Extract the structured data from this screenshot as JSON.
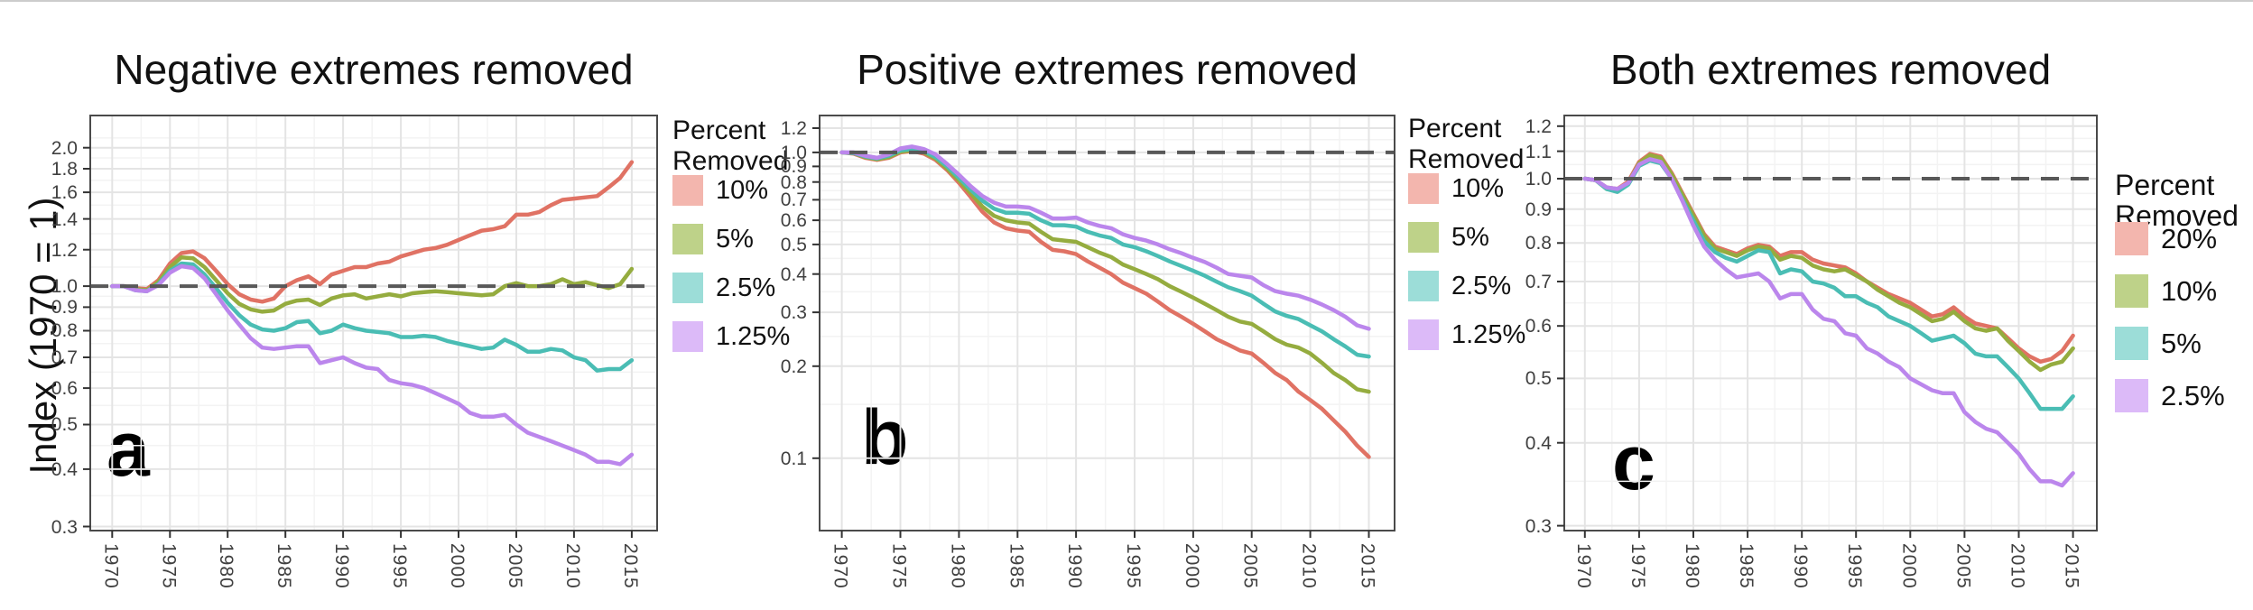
{
  "figure": {
    "y_axis_label": "Index (1970 = 1)",
    "reference_line_color": "#585858",
    "background_color": "#ffffff"
  },
  "chart_data": [
    {
      "type": "line",
      "title": "Negative extremes removed",
      "panel_label": "a",
      "ylabel": "Index (1970 = 1)",
      "y_scale": "log10",
      "reference_line_y": 1.0,
      "legend_title_lines": [
        "Percent",
        "Removed"
      ],
      "legend_position": "right",
      "grid": true,
      "xticks": [
        1970,
        1975,
        1980,
        1985,
        1990,
        1995,
        2000,
        2005,
        2010,
        2015
      ],
      "yticks": [
        0.3,
        0.4,
        0.5,
        0.6,
        0.7,
        0.8,
        0.9,
        1.0,
        1.2,
        1.4,
        1.6,
        1.8,
        2.0
      ],
      "xlim": [
        1968.1,
        2017.2
      ],
      "ylim": [
        0.294,
        2.35
      ],
      "x": [
        1970,
        1971,
        1972,
        1973,
        1974,
        1975,
        1976,
        1977,
        1978,
        1979,
        1980,
        1981,
        1982,
        1983,
        1984,
        1985,
        1986,
        1987,
        1988,
        1989,
        1990,
        1991,
        1992,
        1993,
        1994,
        1995,
        1996,
        1997,
        1998,
        1999,
        2000,
        2001,
        2002,
        2003,
        2004,
        2005,
        2006,
        2007,
        2008,
        2009,
        2010,
        2011,
        2012,
        2013,
        2014,
        2015
      ],
      "series": [
        {
          "name": "10%",
          "color": "#E07264",
          "swatch_color": "#F3B6AE",
          "values": [
            1.0,
            1.0,
            0.99,
            0.985,
            1.03,
            1.12,
            1.18,
            1.19,
            1.15,
            1.08,
            1.01,
            0.96,
            0.935,
            0.925,
            0.94,
            1.0,
            1.03,
            1.05,
            1.01,
            1.06,
            1.08,
            1.1,
            1.1,
            1.12,
            1.13,
            1.16,
            1.18,
            1.2,
            1.21,
            1.23,
            1.26,
            1.29,
            1.32,
            1.33,
            1.35,
            1.43,
            1.43,
            1.45,
            1.5,
            1.54,
            1.55,
            1.56,
            1.57,
            1.64,
            1.72,
            1.86
          ]
        },
        {
          "name": "5%",
          "color": "#95AC3F",
          "swatch_color": "#BED289",
          "values": [
            1.0,
            1.0,
            0.985,
            0.98,
            1.02,
            1.1,
            1.155,
            1.15,
            1.1,
            1.03,
            0.965,
            0.915,
            0.89,
            0.88,
            0.885,
            0.915,
            0.93,
            0.935,
            0.91,
            0.94,
            0.955,
            0.96,
            0.94,
            0.95,
            0.96,
            0.95,
            0.965,
            0.97,
            0.975,
            0.97,
            0.965,
            0.96,
            0.955,
            0.96,
            1.0,
            1.015,
            1.0,
            1.0,
            1.01,
            1.035,
            1.01,
            1.02,
            1.005,
            0.99,
            1.01,
            1.09
          ]
        },
        {
          "name": "2.5%",
          "color": "#4ABDB4",
          "swatch_color": "#9CDDD8",
          "values": [
            1.0,
            1.0,
            0.98,
            0.975,
            1.01,
            1.08,
            1.12,
            1.115,
            1.06,
            0.99,
            0.92,
            0.865,
            0.825,
            0.805,
            0.8,
            0.81,
            0.835,
            0.84,
            0.79,
            0.8,
            0.825,
            0.81,
            0.8,
            0.795,
            0.79,
            0.775,
            0.775,
            0.78,
            0.775,
            0.76,
            0.75,
            0.74,
            0.73,
            0.735,
            0.765,
            0.745,
            0.72,
            0.72,
            0.73,
            0.725,
            0.7,
            0.69,
            0.655,
            0.66,
            0.66,
            0.69
          ]
        },
        {
          "name": "1.25%",
          "color": "#BB86EC",
          "swatch_color": "#DCBAF8",
          "values": [
            1.0,
            1.0,
            0.98,
            0.975,
            1.005,
            1.07,
            1.105,
            1.095,
            1.04,
            0.96,
            0.885,
            0.825,
            0.77,
            0.735,
            0.73,
            0.735,
            0.74,
            0.74,
            0.68,
            0.69,
            0.7,
            0.68,
            0.665,
            0.66,
            0.625,
            0.615,
            0.61,
            0.6,
            0.585,
            0.57,
            0.555,
            0.53,
            0.52,
            0.52,
            0.525,
            0.5,
            0.48,
            0.47,
            0.46,
            0.45,
            0.44,
            0.43,
            0.415,
            0.415,
            0.41,
            0.43
          ]
        }
      ]
    },
    {
      "type": "line",
      "title": "Positive extremes removed",
      "panel_label": "b",
      "ylabel": "Index (1970 = 1)",
      "y_scale": "log10",
      "reference_line_y": 1.0,
      "legend_title_lines": [
        "Percent",
        "Removed"
      ],
      "legend_position": "right",
      "grid": true,
      "xticks": [
        1970,
        1975,
        1980,
        1985,
        1990,
        1995,
        2000,
        2005,
        2010,
        2015
      ],
      "yticks": [
        0.1,
        0.2,
        0.3,
        0.4,
        0.5,
        0.6,
        0.7,
        0.8,
        0.9,
        1.0,
        1.2
      ],
      "xlim": [
        1968.1,
        2017.2
      ],
      "ylim": [
        0.058,
        1.32
      ],
      "x": [
        1970,
        1971,
        1972,
        1973,
        1974,
        1975,
        1976,
        1977,
        1978,
        1979,
        1980,
        1981,
        1982,
        1983,
        1984,
        1985,
        1986,
        1987,
        1988,
        1989,
        1990,
        1991,
        1992,
        1993,
        1994,
        1995,
        1996,
        1997,
        1998,
        1999,
        2000,
        2001,
        2002,
        2003,
        2004,
        2005,
        2006,
        2007,
        2008,
        2009,
        2010,
        2011,
        2012,
        2013,
        2014,
        2015
      ],
      "series": [
        {
          "name": "10%",
          "color": "#E07264",
          "swatch_color": "#F3B6AE",
          "values": [
            1.0,
            0.99,
            0.96,
            0.945,
            0.96,
            1.0,
            1.01,
            0.99,
            0.945,
            0.875,
            0.795,
            0.715,
            0.64,
            0.59,
            0.565,
            0.555,
            0.55,
            0.51,
            0.48,
            0.475,
            0.465,
            0.44,
            0.42,
            0.4,
            0.375,
            0.36,
            0.345,
            0.325,
            0.305,
            0.29,
            0.275,
            0.26,
            0.245,
            0.235,
            0.225,
            0.22,
            0.205,
            0.19,
            0.18,
            0.165,
            0.155,
            0.145,
            0.133,
            0.122,
            0.11,
            0.101
          ]
        },
        {
          "name": "5%",
          "color": "#95AC3F",
          "swatch_color": "#BED289",
          "values": [
            1.0,
            0.995,
            0.965,
            0.95,
            0.965,
            1.005,
            1.015,
            1.0,
            0.955,
            0.885,
            0.81,
            0.735,
            0.665,
            0.62,
            0.6,
            0.59,
            0.585,
            0.55,
            0.52,
            0.515,
            0.51,
            0.49,
            0.47,
            0.455,
            0.43,
            0.415,
            0.4,
            0.385,
            0.365,
            0.35,
            0.335,
            0.32,
            0.305,
            0.29,
            0.28,
            0.275,
            0.26,
            0.245,
            0.235,
            0.23,
            0.22,
            0.205,
            0.19,
            0.18,
            0.168,
            0.165
          ]
        },
        {
          "name": "2.5%",
          "color": "#4ABDB4",
          "swatch_color": "#9CDDD8",
          "values": [
            1.0,
            0.995,
            0.97,
            0.955,
            0.975,
            1.015,
            1.025,
            1.01,
            0.965,
            0.9,
            0.825,
            0.755,
            0.695,
            0.655,
            0.635,
            0.635,
            0.63,
            0.6,
            0.578,
            0.578,
            0.572,
            0.55,
            0.535,
            0.525,
            0.5,
            0.49,
            0.475,
            0.458,
            0.44,
            0.425,
            0.41,
            0.395,
            0.378,
            0.362,
            0.352,
            0.34,
            0.32,
            0.302,
            0.292,
            0.285,
            0.272,
            0.26,
            0.245,
            0.232,
            0.218,
            0.215
          ]
        },
        {
          "name": "1.25%",
          "color": "#BB86EC",
          "swatch_color": "#DCBAF8",
          "values": [
            1.0,
            1.0,
            0.975,
            0.96,
            0.985,
            1.03,
            1.045,
            1.025,
            0.985,
            0.915,
            0.845,
            0.775,
            0.72,
            0.685,
            0.665,
            0.665,
            0.66,
            0.635,
            0.608,
            0.608,
            0.612,
            0.59,
            0.575,
            0.565,
            0.54,
            0.525,
            0.515,
            0.5,
            0.482,
            0.468,
            0.452,
            0.438,
            0.42,
            0.4,
            0.395,
            0.39,
            0.368,
            0.352,
            0.345,
            0.34,
            0.33,
            0.318,
            0.305,
            0.29,
            0.272,
            0.265
          ]
        }
      ]
    },
    {
      "type": "line",
      "title": "Both extremes removed",
      "panel_label": "c",
      "ylabel": "Index (1970 = 1)",
      "y_scale": "log10",
      "reference_line_y": 1.0,
      "legend_title_lines": [
        "Percent",
        "Removed"
      ],
      "legend_position": "right",
      "grid": true,
      "xticks": [
        1970,
        1975,
        1980,
        1985,
        1990,
        1995,
        2000,
        2005,
        2010,
        2015
      ],
      "yticks": [
        0.3,
        0.4,
        0.5,
        0.6,
        0.7,
        0.8,
        0.9,
        1.0,
        1.1,
        1.2
      ],
      "xlim": [
        1968.1,
        2017.2
      ],
      "ylim": [
        0.295,
        1.245
      ],
      "x": [
        1970,
        1971,
        1972,
        1973,
        1974,
        1975,
        1976,
        1977,
        1978,
        1979,
        1980,
        1981,
        1982,
        1983,
        1984,
        1985,
        1986,
        1987,
        1988,
        1989,
        1990,
        1991,
        1992,
        1993,
        1994,
        1995,
        1996,
        1997,
        1998,
        1999,
        2000,
        2001,
        2002,
        2003,
        2004,
        2005,
        2006,
        2007,
        2008,
        2009,
        2010,
        2011,
        2012,
        2013,
        2014,
        2015
      ],
      "series": [
        {
          "name": "20%",
          "color": "#E07264",
          "swatch_color": "#F3B6AE",
          "values": [
            1.0,
            0.995,
            0.97,
            0.965,
            0.99,
            1.06,
            1.09,
            1.08,
            1.02,
            0.95,
            0.885,
            0.825,
            0.79,
            0.78,
            0.77,
            0.785,
            0.795,
            0.79,
            0.765,
            0.775,
            0.775,
            0.755,
            0.745,
            0.74,
            0.735,
            0.72,
            0.7,
            0.685,
            0.67,
            0.66,
            0.65,
            0.635,
            0.62,
            0.625,
            0.64,
            0.62,
            0.605,
            0.6,
            0.595,
            0.575,
            0.555,
            0.54,
            0.53,
            0.535,
            0.55,
            0.58
          ]
        },
        {
          "name": "10%",
          "color": "#95AC3F",
          "swatch_color": "#BED289",
          "values": [
            1.0,
            0.995,
            0.965,
            0.96,
            0.985,
            1.055,
            1.085,
            1.075,
            1.015,
            0.945,
            0.88,
            0.82,
            0.785,
            0.775,
            0.765,
            0.78,
            0.79,
            0.785,
            0.755,
            0.765,
            0.76,
            0.74,
            0.73,
            0.725,
            0.73,
            0.715,
            0.7,
            0.68,
            0.665,
            0.65,
            0.64,
            0.625,
            0.61,
            0.615,
            0.63,
            0.61,
            0.595,
            0.59,
            0.595,
            0.57,
            0.55,
            0.53,
            0.515,
            0.525,
            0.53,
            0.555
          ]
        },
        {
          "name": "5%",
          "color": "#4ABDB4",
          "swatch_color": "#9CDDD8",
          "values": [
            1.0,
            0.995,
            0.965,
            0.955,
            0.98,
            1.045,
            1.065,
            1.055,
            1.0,
            0.93,
            0.865,
            0.805,
            0.775,
            0.76,
            0.75,
            0.765,
            0.78,
            0.775,
            0.72,
            0.73,
            0.725,
            0.7,
            0.695,
            0.685,
            0.665,
            0.665,
            0.65,
            0.64,
            0.62,
            0.61,
            0.6,
            0.585,
            0.57,
            0.575,
            0.58,
            0.565,
            0.545,
            0.54,
            0.54,
            0.52,
            0.5,
            0.475,
            0.45,
            0.45,
            0.45,
            0.47
          ]
        },
        {
          "name": "2.5%",
          "color": "#BB86EC",
          "swatch_color": "#DCBAF8",
          "values": [
            1.0,
            0.995,
            0.97,
            0.965,
            0.985,
            1.05,
            1.07,
            1.06,
            1.0,
            0.925,
            0.85,
            0.79,
            0.755,
            0.73,
            0.71,
            0.715,
            0.72,
            0.7,
            0.66,
            0.67,
            0.67,
            0.635,
            0.615,
            0.61,
            0.585,
            0.58,
            0.555,
            0.545,
            0.53,
            0.52,
            0.5,
            0.49,
            0.48,
            0.475,
            0.475,
            0.445,
            0.43,
            0.42,
            0.415,
            0.4,
            0.385,
            0.365,
            0.35,
            0.35,
            0.345,
            0.36
          ]
        }
      ]
    }
  ]
}
